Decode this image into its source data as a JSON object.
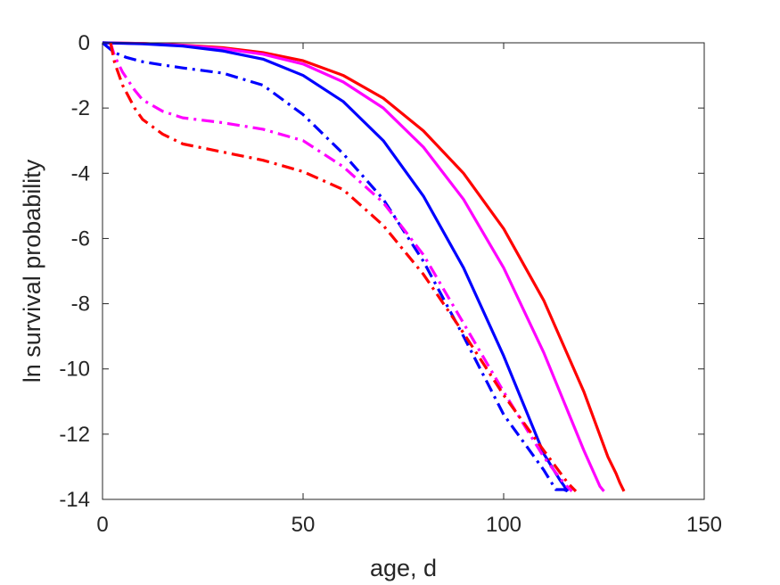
{
  "chart_data": {
    "type": "line",
    "title": "",
    "xlabel": "age, d",
    "ylabel": "ln survival probability",
    "xlim": [
      0,
      150
    ],
    "ylim": [
      -14,
      0
    ],
    "xticks": [
      0,
      50,
      100,
      150
    ],
    "yticks": [
      0,
      -2,
      -4,
      -6,
      -8,
      -10,
      -12,
      -14
    ],
    "xtick_labels": [
      "0",
      "50",
      "100",
      "150"
    ],
    "ytick_labels": [
      "0",
      "-2",
      "-4",
      "-6",
      "-8",
      "-10",
      "-12",
      "-14"
    ],
    "grid": false,
    "legend": "none",
    "series": [
      {
        "color": "#ff0000",
        "style": "solid",
        "x": [
          0,
          10,
          20,
          30,
          40,
          50,
          60,
          70,
          80,
          90,
          100,
          110,
          120,
          126,
          128,
          129,
          130
        ],
        "y": [
          0,
          -0.02,
          -0.07,
          -0.15,
          -0.3,
          -0.55,
          -1.0,
          -1.7,
          -2.7,
          -4.0,
          -5.7,
          -7.9,
          -10.7,
          -12.7,
          -13.2,
          -13.5,
          -13.75
        ]
      },
      {
        "color": "#ff00ff",
        "style": "solid",
        "x": [
          0,
          10,
          20,
          30,
          40,
          50,
          60,
          70,
          80,
          90,
          100,
          110,
          120,
          124,
          125
        ],
        "y": [
          0,
          -0.02,
          -0.08,
          -0.18,
          -0.35,
          -0.65,
          -1.2,
          -2.0,
          -3.2,
          -4.8,
          -6.9,
          -9.5,
          -12.5,
          -13.6,
          -13.75
        ]
      },
      {
        "color": "#0000ff",
        "style": "solid",
        "x": [
          0,
          10,
          20,
          30,
          40,
          50,
          60,
          70,
          80,
          90,
          100,
          110,
          114,
          116
        ],
        "y": [
          0,
          -0.03,
          -0.1,
          -0.25,
          -0.5,
          -1.0,
          -1.8,
          -3.0,
          -4.7,
          -6.9,
          -9.6,
          -12.6,
          -13.4,
          -13.75
        ]
      },
      {
        "color": "#0000ff",
        "style": "dashdot",
        "x": [
          0,
          3,
          6,
          10,
          15,
          20,
          30,
          40,
          50,
          60,
          70,
          80,
          90,
          100,
          110,
          113,
          115,
          116
        ],
        "y": [
          0,
          -0.3,
          -0.45,
          -0.58,
          -0.68,
          -0.77,
          -0.93,
          -1.3,
          -2.2,
          -3.4,
          -4.8,
          -6.7,
          -9.0,
          -11.4,
          -13.1,
          -13.7,
          -13.7,
          -13.75
        ]
      },
      {
        "color": "#ff00ff",
        "style": "dashdot",
        "x": [
          2,
          3,
          5,
          8,
          10,
          15,
          20,
          30,
          40,
          50,
          60,
          70,
          80,
          90,
          100,
          110,
          115,
          117
        ],
        "y": [
          0,
          -0.4,
          -0.9,
          -1.45,
          -1.75,
          -2.1,
          -2.3,
          -2.45,
          -2.65,
          -3.0,
          -3.8,
          -4.9,
          -6.5,
          -8.6,
          -10.7,
          -12.7,
          -13.5,
          -13.75
        ]
      },
      {
        "color": "#ff0000",
        "style": "dashdot",
        "x": [
          2,
          3,
          5,
          8,
          10,
          15,
          20,
          30,
          40,
          50,
          60,
          70,
          80,
          90,
          100,
          110,
          116,
          118
        ],
        "y": [
          0,
          -0.6,
          -1.3,
          -2.0,
          -2.35,
          -2.8,
          -3.1,
          -3.35,
          -3.6,
          -3.95,
          -4.5,
          -5.6,
          -7.1,
          -8.9,
          -10.8,
          -12.5,
          -13.5,
          -13.75
        ]
      }
    ]
  }
}
